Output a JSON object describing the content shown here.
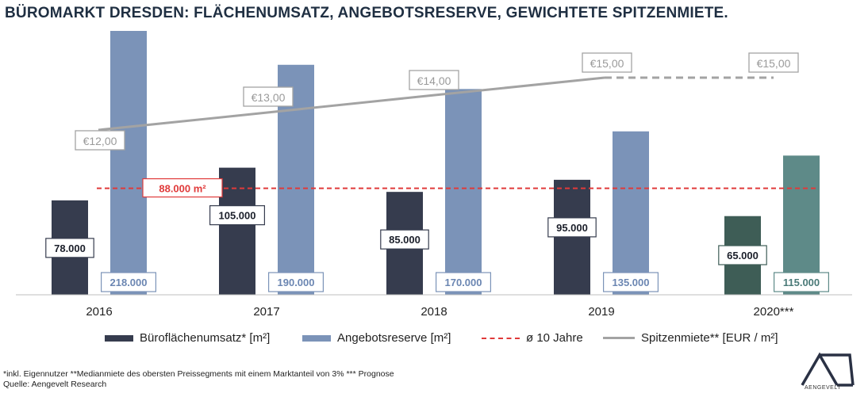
{
  "title": "BÜROMARKT DRESDEN: FLÄCHENUMSATZ, ANGEBOTSRESERVE, GEWICHTETE SPITZENMIETE.",
  "chart_data": {
    "type": "bar",
    "categories": [
      "2016",
      "2017",
      "2018",
      "2019",
      "2020***"
    ],
    "series": [
      {
        "name": "Büroflächenumsatz* [m²]",
        "values": [
          78000,
          105000,
          85000,
          95000,
          65000
        ],
        "labels": [
          "78.000",
          "105.000",
          "85.000",
          "95.000",
          "65.000"
        ]
      },
      {
        "name": "Angebotsreserve [m²]",
        "values": [
          218000,
          190000,
          170000,
          135000,
          115000
        ],
        "labels": [
          "218.000",
          "190.000",
          "170.000",
          "135.000",
          "115.000"
        ]
      }
    ],
    "reference_line": {
      "name": "ø 10 Jahre",
      "value": 88000,
      "label": "88.000 m²"
    },
    "line_series": {
      "name": "Spitzenmiete** [EUR / m²]",
      "values": [
        12,
        13,
        14,
        15,
        15
      ],
      "labels": [
        "€12,00",
        "€13,00",
        "€14,00",
        "€15,00",
        "€15,00"
      ],
      "forecast_from_index": 3
    },
    "colors": {
      "umsatz": "#363c4e",
      "angebot": "#7b93b8",
      "umsatz_prognose": "#3e5d56",
      "angebot_prognose": "#5e8a88",
      "avg_line": "#e03a3a",
      "rent_line": "#a3a3a3"
    }
  },
  "legend": {
    "umsatz": "Büroflächenumsatz* [m²]",
    "angebot": "Angebotsreserve [m²]",
    "avg": "ø 10 Jahre",
    "rent": "Spitzenmiete** [EUR / m²]"
  },
  "footnote": "*inkl. Eigennutzer **Medianmiete des obersten Preissegments mit einem Marktanteil von 3% *** Prognose",
  "source": "Quelle: Aengevelt Research",
  "logo_text": "AENGEVELT"
}
